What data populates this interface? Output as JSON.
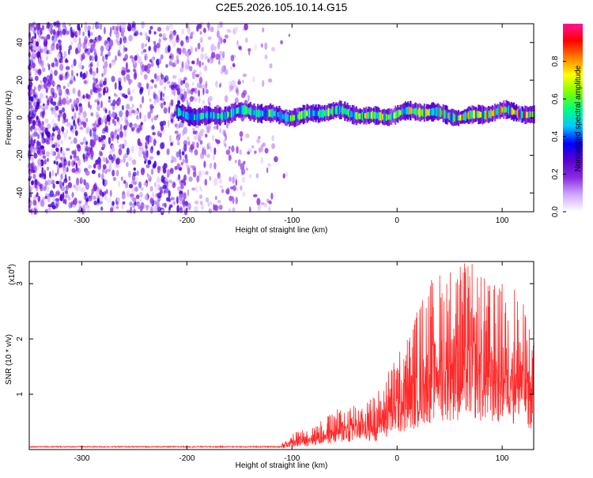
{
  "title": "C2E5.2026.105.10.14.G15",
  "chart_data": [
    {
      "type": "heatmap",
      "xlabel": "Height of straight line (km)",
      "ylabel": "Frequency (Hz)",
      "xlim": [
        -350,
        130
      ],
      "ylim": [
        -50,
        50
      ],
      "x_ticks": [
        -300,
        -200,
        -100,
        0,
        100
      ],
      "x_tick_labels": [
        "-300",
        "-200",
        "-100",
        "0",
        "100"
      ],
      "y_ticks": [
        -40,
        -20,
        0,
        20,
        40
      ],
      "y_tick_labels": [
        "-40",
        "-20",
        "0",
        "20",
        "40"
      ],
      "colorbar": {
        "label": "Normalized spectral amplitude",
        "range": [
          0,
          1
        ],
        "ticks": [
          0.0,
          0.2,
          0.4,
          0.6,
          0.8
        ],
        "tick_labels": [
          "0.0",
          "0.2",
          "0.4",
          "0.6",
          "0.8"
        ],
        "colormap": [
          "#ffffff",
          "#cfa8ff",
          "#8a2be2",
          "#5a00d0",
          "#0000ff",
          "#00c8ff",
          "#00ff80",
          "#80ff00",
          "#ffff00",
          "#ff8000",
          "#ff0000",
          "#ff1493"
        ]
      },
      "features": [
        {
          "description_region": "broadband noise",
          "x_range": [
            -350,
            -120
          ],
          "freq_range": [
            -50,
            50
          ],
          "amplitude": 0.1
        },
        {
          "description_region": "signal band",
          "x_range": [
            -210,
            130
          ],
          "freq_center": 2,
          "freq_halfwidth": 4,
          "amplitude_range": [
            0.2,
            0.95
          ]
        }
      ]
    },
    {
      "type": "line",
      "xlabel": "Height of straight line (km)",
      "ylabel": "SNR (10 * v/v)",
      "y_scale_label": "(x10",
      "y_scale_exp": "4",
      "xlim": [
        -350,
        130
      ],
      "ylim": [
        0,
        3.4
      ],
      "x_ticks": [
        -300,
        -200,
        -100,
        0,
        100
      ],
      "x_tick_labels": [
        "-300",
        "-200",
        "-100",
        "0",
        "100"
      ],
      "y_ticks": [
        1,
        2,
        3
      ],
      "y_tick_labels": [
        "1",
        "2",
        "3"
      ],
      "series": [
        {
          "color": "#ff2a2a",
          "envelope": [
            {
              "x": -350,
              "y": 0.05
            },
            {
              "x": -200,
              "y": 0.05
            },
            {
              "x": -150,
              "y": 0.07
            },
            {
              "x": -110,
              "y": 0.12
            },
            {
              "x": -100,
              "y": 0.3
            },
            {
              "x": -80,
              "y": 0.45
            },
            {
              "x": -60,
              "y": 0.7
            },
            {
              "x": -40,
              "y": 0.9
            },
            {
              "x": -20,
              "y": 1.0
            },
            {
              "x": -5,
              "y": 1.6
            },
            {
              "x": 10,
              "y": 2.1
            },
            {
              "x": 30,
              "y": 3.1
            },
            {
              "x": 50,
              "y": 3.4
            },
            {
              "x": 70,
              "y": 3.4
            },
            {
              "x": 90,
              "y": 3.0
            },
            {
              "x": 110,
              "y": 3.1
            },
            {
              "x": 130,
              "y": 2.2
            }
          ]
        }
      ]
    }
  ]
}
